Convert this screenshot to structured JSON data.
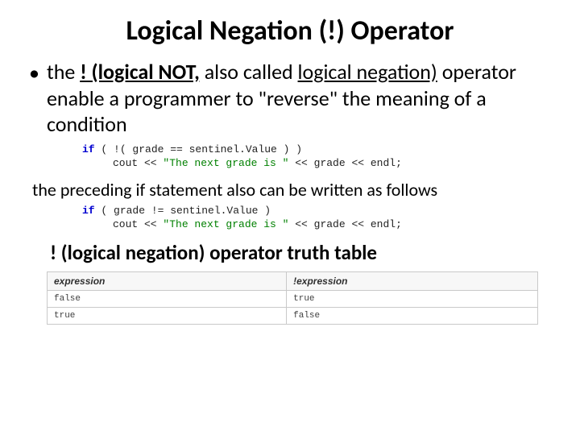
{
  "title": "Logical Negation (!) Operator",
  "bullet": {
    "pre": "the ",
    "bold_u": "! (logical NOT,",
    "mid1": " also called ",
    "u2": "logical negation)",
    "rest": " operator enable a programmer to \"reverse\" the meaning of a condition"
  },
  "code1": {
    "kw_if": "if",
    "line1_rest": " ( !( grade == sentinel.Value ) )",
    "line2_a": "cout << ",
    "line2_str": "\"The next grade is \"",
    "line2_b": " << grade << endl;"
  },
  "mid_text": "the preceding if statement also can be written as follows",
  "code2": {
    "kw_if": "if",
    "line1_rest": " ( grade != sentinel.Value )",
    "line2_a": "cout << ",
    "line2_str": "\"The next grade is \"",
    "line2_b": " << grade << endl;"
  },
  "subhead": "! (logical negation) operator truth table",
  "truth_table": {
    "headers": [
      "expression",
      "!expression"
    ],
    "rows": [
      [
        "false",
        "true"
      ],
      [
        "true",
        "false"
      ]
    ],
    "border_color": "#c9c9c9",
    "header_bg": "#f7f7f7",
    "cell_bg": "#ffffff",
    "header_fontsize": 12,
    "cell_fontsize": 11
  },
  "colors": {
    "keyword": "#0000d0",
    "string": "#008000",
    "text": "#000000",
    "code_plain": "#222222"
  }
}
